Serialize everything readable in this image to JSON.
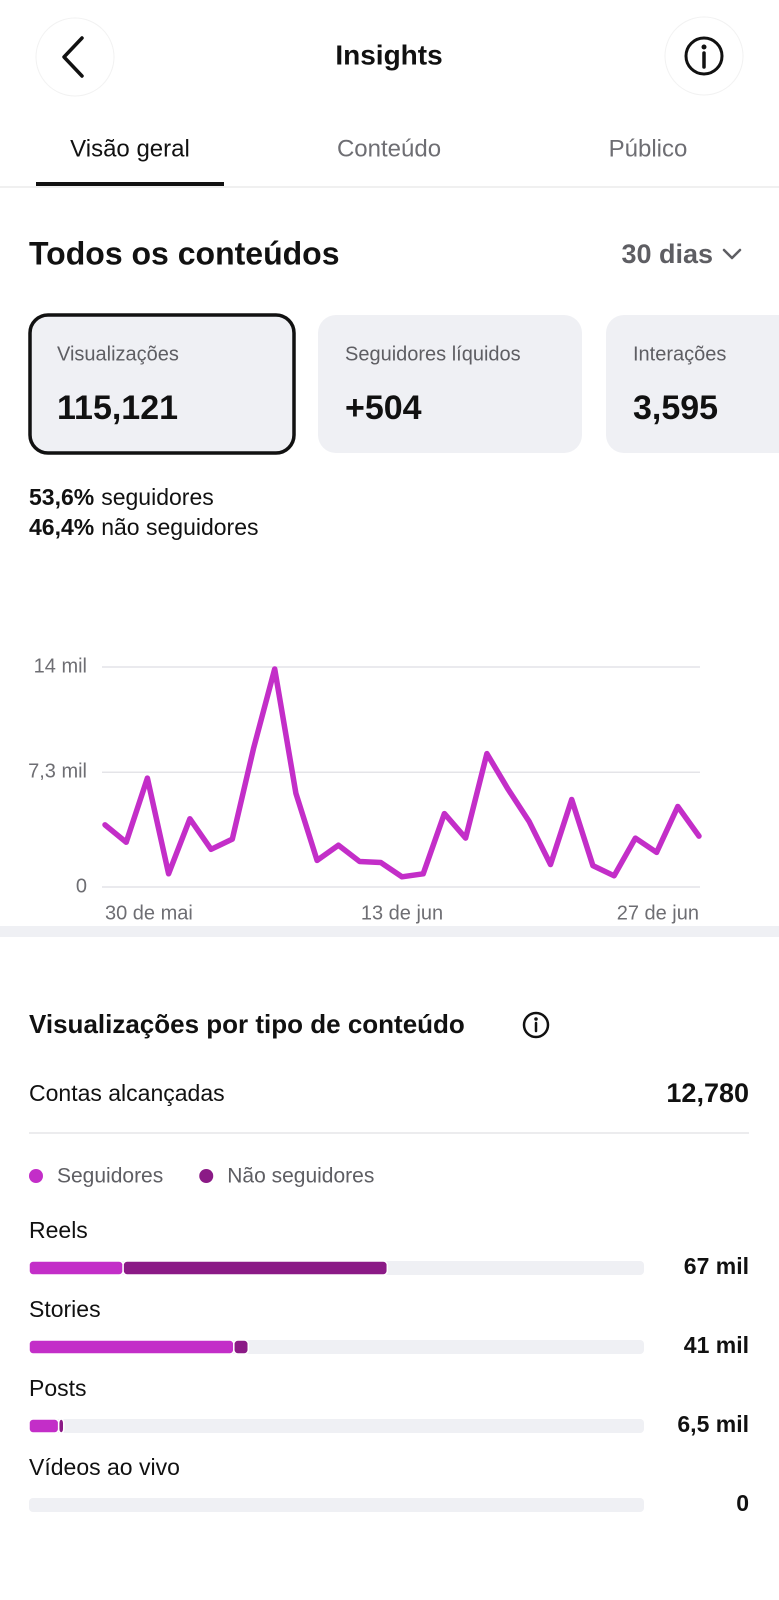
{
  "header": {
    "title": "Insights"
  },
  "tabs": [
    "Visão geral",
    "Conteúdo",
    "Público"
  ],
  "section": {
    "title": "Todos os conteúdos",
    "period": "30 dias"
  },
  "cards": [
    {
      "label": "Visualizações",
      "value": "115,121"
    },
    {
      "label": "Seguidores líquidos",
      "value": "+504"
    },
    {
      "label": "Interações",
      "value": "3,595"
    }
  ],
  "split": [
    {
      "value": "53,6%",
      "label": "seguidores"
    },
    {
      "value": "46,4%",
      "label": "não seguidores"
    }
  ],
  "reach": {
    "label": "Contas alcançadas",
    "value": "12,780"
  },
  "chart_data": [
    {
      "type": "line",
      "categories": [
        "30 de mai",
        null,
        null,
        null,
        null,
        null,
        null,
        null,
        null,
        null,
        null,
        null,
        null,
        null,
        "13 de jun",
        null,
        null,
        null,
        null,
        null,
        null,
        null,
        null,
        null,
        null,
        null,
        null,
        null,
        "27 de jun"
      ],
      "values": [
        3950,
        2850,
        6930,
        840,
        4340,
        2400,
        3050,
        8810,
        13870,
        5960,
        1690,
        2660,
        1620,
        1560,
        650,
        840,
        4670,
        3110,
        8490,
        6220,
        4150,
        1430,
        5570,
        1360,
        710,
        3110,
        2200,
        5120,
        3240
      ],
      "color": "#c32ec8",
      "ylim": [
        0,
        14000
      ],
      "yticks": [
        0,
        {
          "value": 7300,
          "label": "7,3 mil"
        },
        {
          "value": 14000,
          "label": "14 mil"
        }
      ],
      "grid": true
    },
    {
      "type": "bar",
      "orientation": "horizontal",
      "stacked": true,
      "title": "Visualizações por tipo de conteúdo",
      "categories": [
        "Reels",
        "Stories",
        "Posts",
        "Vídeos ao vivo"
      ],
      "series": [
        {
          "name": "Seguidores",
          "color": "#c32ec8",
          "values": [
            17600,
            38300,
            5550,
            0
          ]
        },
        {
          "name": "Não seguidores",
          "color": "#8b1a86",
          "values": [
            49400,
            2700,
            950,
            0
          ]
        }
      ],
      "totals": [
        67000,
        41000,
        6500,
        0
      ],
      "total_labels": [
        "67 mil",
        "41 mil",
        "6,5 mil",
        "0"
      ],
      "xlim": [
        0,
        115000
      ]
    }
  ]
}
